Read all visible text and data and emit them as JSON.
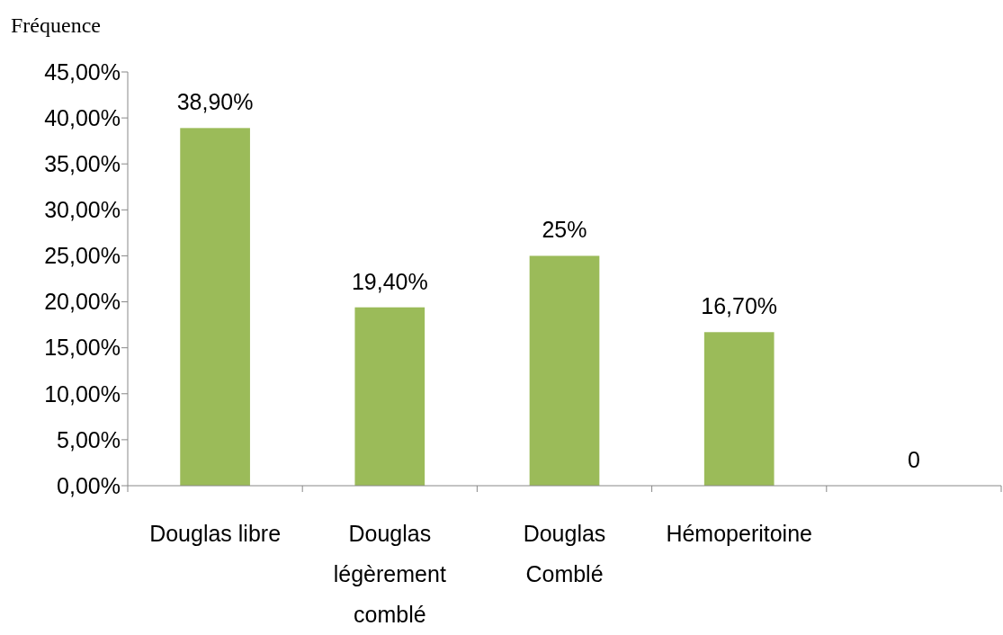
{
  "chart_data": {
    "type": "bar",
    "ylabel": "Fréquence",
    "categories": [
      "Douglas libre",
      "Douglas légèrement comblé",
      "Douglas Comblé",
      "Hémoperitoine",
      null
    ],
    "values": [
      38.9,
      19.4,
      25,
      16.7,
      0
    ],
    "color": "#9bbb59",
    "value_labels": [
      "38,90%",
      "19,40%",
      "25%",
      "16,70%",
      "0"
    ],
    "ylim": [
      0,
      45
    ],
    "yticks": [
      {
        "value": 0,
        "label": "0,00%"
      },
      {
        "value": 5,
        "label": "5,00%"
      },
      {
        "value": 10,
        "label": "10,00%"
      },
      {
        "value": 15,
        "label": "15,00%"
      },
      {
        "value": 20,
        "label": "20,00%"
      },
      {
        "value": 25,
        "label": "25,00%"
      },
      {
        "value": 30,
        "label": "30,00%"
      },
      {
        "value": 35,
        "label": "35,00%"
      },
      {
        "value": 40,
        "label": "40,00%"
      },
      {
        "value": 45,
        "label": "45,00%"
      }
    ],
    "grid": false
  }
}
